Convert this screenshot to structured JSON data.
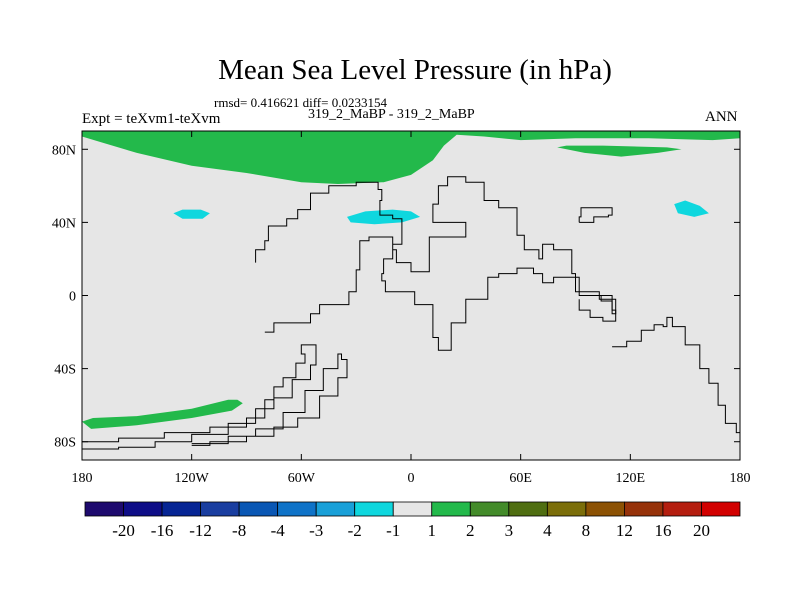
{
  "chart_data": {
    "type": "heatmap",
    "title": "Mean Sea Level Pressure (in hPa)",
    "subtitle": "rmsd= 0.416621 diff= 0.0233154",
    "experiment_pair": "319_2_MaBP - 319_2_MaBP",
    "left_label": "Expt = teXvm1-teXvm",
    "right_label": "ANN",
    "xlim": [
      -180,
      180
    ],
    "ylim": [
      -90,
      90
    ],
    "x_ticks": [
      {
        "value": -180,
        "label": "180"
      },
      {
        "value": -120,
        "label": "120W"
      },
      {
        "value": -60,
        "label": "60W"
      },
      {
        "value": 0,
        "label": "0"
      },
      {
        "value": 60,
        "label": "60E"
      },
      {
        "value": 120,
        "label": "120E"
      },
      {
        "value": 180,
        "label": "180"
      }
    ],
    "y_ticks": [
      {
        "value": 80,
        "label": "80N"
      },
      {
        "value": 40,
        "label": "40N"
      },
      {
        "value": 0,
        "label": "0"
      },
      {
        "value": -40,
        "label": "40S"
      },
      {
        "value": -80,
        "label": "80S"
      }
    ],
    "background_color": "#e6e6e6",
    "colorbar": {
      "labels": [
        "-20",
        "-16",
        "-12",
        "-8",
        "-4",
        "-3",
        "-2",
        "-1",
        "1",
        "2",
        "3",
        "4",
        "8",
        "12",
        "16",
        "20"
      ],
      "colors": [
        "#1e0a6e",
        "#0e0d87",
        "#062594",
        "#1a3ea0",
        "#0a57b4",
        "#0f73c8",
        "#19a0d8",
        "#0fd7de",
        "#e6e6e6",
        "#23b94b",
        "#438b2a",
        "#4f6e11",
        "#7b6e0a",
        "#8c5204",
        "#96320a",
        "#b41e0f",
        "#d20000"
      ]
    },
    "regions": [
      {
        "name": "arctic-positive-anomaly",
        "category": "1 to 2",
        "color": "#23b94b",
        "points": [
          [
            -180,
            90
          ],
          [
            -180,
            87
          ],
          [
            -170,
            84
          ],
          [
            -150,
            78
          ],
          [
            -120,
            71
          ],
          [
            -90,
            67
          ],
          [
            -60,
            62
          ],
          [
            -40,
            61
          ],
          [
            -15,
            62
          ],
          [
            0,
            66
          ],
          [
            12,
            74
          ],
          [
            18,
            82
          ],
          [
            25,
            88
          ],
          [
            40,
            87
          ],
          [
            60,
            85
          ],
          [
            90,
            86
          ],
          [
            130,
            86
          ],
          [
            165,
            85
          ],
          [
            180,
            86
          ],
          [
            180,
            90
          ]
        ]
      },
      {
        "name": "siberia-positive-anomaly",
        "category": "1 to 2",
        "color": "#23b94b",
        "points": [
          [
            80,
            81
          ],
          [
            95,
            78
          ],
          [
            115,
            76
          ],
          [
            135,
            78
          ],
          [
            148,
            80
          ],
          [
            140,
            81
          ],
          [
            105,
            82
          ],
          [
            85,
            82
          ]
        ]
      },
      {
        "name": "southern-positive-anomaly",
        "category": "1 to 2",
        "color": "#23b94b",
        "points": [
          [
            -180,
            -69
          ],
          [
            -174,
            -67
          ],
          [
            -150,
            -66
          ],
          [
            -120,
            -62
          ],
          [
            -100,
            -57
          ],
          [
            -95,
            -57
          ],
          [
            -92,
            -59
          ],
          [
            -98,
            -63
          ],
          [
            -120,
            -67
          ],
          [
            -150,
            -71
          ],
          [
            -175,
            -73
          ]
        ]
      },
      {
        "name": "north-pacific-negative-anomaly",
        "category": "-2 to -1",
        "color": "#0fd7de",
        "points": [
          [
            -130,
            45
          ],
          [
            -125,
            47
          ],
          [
            -115,
            47
          ],
          [
            -110,
            45
          ],
          [
            -114,
            42
          ],
          [
            -125,
            42
          ]
        ]
      },
      {
        "name": "north-atlantic-negative-anomaly",
        "category": "-2 to -1",
        "color": "#0fd7de",
        "points": [
          [
            -35,
            43
          ],
          [
            -25,
            46
          ],
          [
            -10,
            47
          ],
          [
            0,
            46
          ],
          [
            5,
            43
          ],
          [
            -5,
            40
          ],
          [
            -20,
            39
          ],
          [
            -33,
            40
          ]
        ]
      },
      {
        "name": "west-pacific-negative-anomaly",
        "category": "-2 to -1",
        "color": "#0fd7de",
        "points": [
          [
            144,
            50
          ],
          [
            150,
            52
          ],
          [
            158,
            49
          ],
          [
            163,
            45
          ],
          [
            155,
            43
          ],
          [
            146,
            45
          ]
        ]
      }
    ],
    "coastlines": [
      {
        "name": "africa-eurasia-outline",
        "points": [
          [
            -80,
            -20
          ],
          [
            -75,
            -15
          ],
          [
            -60,
            -15
          ],
          [
            -55,
            -10
          ],
          [
            -50,
            -5
          ],
          [
            -38,
            -5
          ],
          [
            -34,
            2
          ],
          [
            -30,
            14
          ],
          [
            -28,
            30
          ],
          [
            -23,
            32
          ],
          [
            -15,
            32
          ],
          [
            -10,
            25
          ],
          [
            -8,
            18
          ],
          [
            0,
            13
          ],
          [
            10,
            16
          ],
          [
            10,
            32
          ],
          [
            22,
            32
          ],
          [
            30,
            40
          ],
          [
            18,
            40
          ],
          [
            12,
            50
          ],
          [
            15,
            60
          ],
          [
            20,
            65
          ],
          [
            30,
            62
          ],
          [
            40,
            52
          ],
          [
            48,
            48
          ],
          [
            58,
            33
          ],
          [
            62,
            25
          ],
          [
            70,
            20
          ],
          [
            72,
            28
          ],
          [
            78,
            25
          ],
          [
            88,
            12
          ],
          [
            90,
            2
          ],
          [
            103,
            -2
          ],
          [
            112,
            -10
          ],
          [
            110,
            0
          ],
          [
            98,
            0
          ],
          [
            92,
            10
          ],
          [
            78,
            7
          ],
          [
            72,
            12
          ],
          [
            67,
            15
          ],
          [
            58,
            12
          ],
          [
            48,
            10
          ],
          [
            42,
            -2
          ],
          [
            30,
            -15
          ],
          [
            22,
            -30
          ],
          [
            15,
            -23
          ],
          [
            12,
            -10
          ],
          [
            12,
            -5
          ],
          [
            2,
            2
          ],
          [
            -5,
            2
          ],
          [
            -14,
            8
          ],
          [
            -16,
            12
          ],
          [
            -15,
            20
          ],
          [
            -10,
            28
          ],
          [
            -5,
            36
          ],
          [
            -5,
            42
          ],
          [
            -10,
            44
          ],
          [
            -17,
            52
          ],
          [
            -16,
            58
          ],
          [
            -18,
            62
          ],
          [
            -30,
            60
          ],
          [
            -45,
            56
          ],
          [
            -55,
            47
          ],
          [
            -62,
            42
          ],
          [
            -68,
            38
          ],
          [
            -78,
            30
          ],
          [
            -80,
            25
          ],
          [
            -85,
            18
          ]
        ]
      },
      {
        "name": "americas-outline",
        "points": [
          [
            -180,
            -80
          ],
          [
            -160,
            -78
          ],
          [
            -135,
            -75
          ],
          [
            -110,
            -72
          ],
          [
            -90,
            -67
          ],
          [
            -80,
            -57
          ],
          [
            -75,
            -50
          ],
          [
            -70,
            -45
          ],
          [
            -63,
            -37
          ],
          [
            -58,
            -32
          ],
          [
            -60,
            -27
          ],
          [
            -57,
            -27
          ],
          [
            -52,
            -38
          ],
          [
            -55,
            -46
          ],
          [
            -65,
            -56
          ],
          [
            -75,
            -62
          ],
          [
            -85,
            -70
          ],
          [
            -100,
            -76
          ],
          [
            -120,
            -80
          ],
          [
            -140,
            -83
          ],
          [
            -160,
            -84
          ],
          [
            -180,
            -84
          ]
        ]
      },
      {
        "name": "inner-coast-outline",
        "points": [
          [
            -120,
            -81
          ],
          [
            -100,
            -77
          ],
          [
            -85,
            -73
          ],
          [
            -70,
            -64
          ],
          [
            -58,
            -52
          ],
          [
            -48,
            -40
          ],
          [
            -40,
            -32
          ],
          [
            -38,
            -35
          ],
          [
            -35,
            -45
          ],
          [
            -40,
            -55
          ],
          [
            -50,
            -67
          ],
          [
            -62,
            -72
          ],
          [
            -75,
            -77
          ],
          [
            -90,
            -80
          ],
          [
            -110,
            -82
          ],
          [
            -120,
            -82
          ]
        ]
      },
      {
        "name": "australia-outline",
        "points": [
          [
            110,
            -28
          ],
          [
            118,
            -25
          ],
          [
            126,
            -19
          ],
          [
            133,
            -16
          ],
          [
            138,
            -17
          ],
          [
            140,
            -12
          ],
          [
            143,
            -17
          ],
          [
            150,
            -27
          ],
          [
            158,
            -40
          ],
          [
            163,
            -48
          ],
          [
            168,
            -60
          ],
          [
            172,
            -70
          ],
          [
            178,
            -75
          ],
          [
            180,
            -85
          ]
        ]
      },
      {
        "name": "east-asia-outline",
        "points": [
          [
            92,
            40
          ],
          [
            100,
            43
          ],
          [
            108,
            44
          ],
          [
            110,
            48
          ],
          [
            100,
            48
          ],
          [
            93,
            43
          ],
          [
            92,
            40
          ]
        ]
      },
      {
        "name": "indonesia-outline",
        "points": [
          [
            96,
            0
          ],
          [
            104,
            -3
          ],
          [
            110,
            -8
          ],
          [
            112,
            -14
          ],
          [
            105,
            -12
          ],
          [
            98,
            -8
          ],
          [
            92,
            -2
          ]
        ]
      }
    ]
  }
}
